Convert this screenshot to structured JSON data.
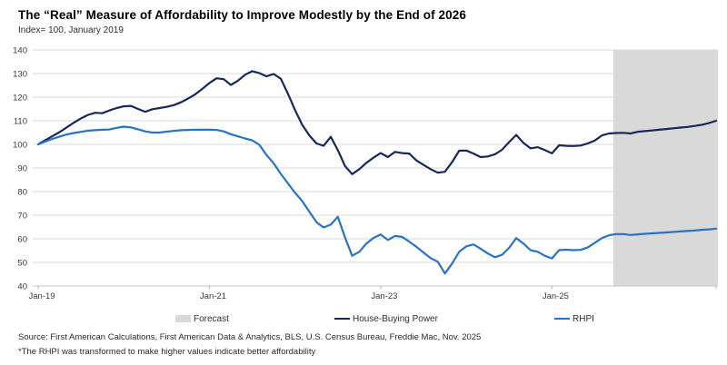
{
  "page": {
    "title": "The “Real” Measure of Affordability to Improve Modestly by the End of 2026",
    "subtitle": "Index= 100, January 2019",
    "source_line": "Source: First American Calculations, First American Data & Analytics, BLS, U.S. Census Bureau, Freddie Mac, Nov. 2025",
    "footnote": "*The RHPI was transformed to make higher values indicate better affordability"
  },
  "chart_data": {
    "type": "line",
    "title": "The “Real” Measure of Affordability to Improve Modestly by the End of 2026",
    "subtitle": "Index= 100, January 2019",
    "x_unit": "month",
    "x_range": [
      "Jan-2019",
      "Dec-2026"
    ],
    "x_tick_labels": [
      "Jan-19",
      "Jan-21",
      "Jan-23",
      "Jan-25"
    ],
    "x_tick_month_indices": [
      0,
      24,
      48,
      72
    ],
    "ylim": [
      40,
      140
    ],
    "y_tick_step": 10,
    "grid": true,
    "gridline_color": "#d9d9d9",
    "axis_line_color": "#c6c6c6",
    "tick_text_color": "#3a3a3a",
    "forecast_band": {
      "label": "Forecast",
      "start_month_index": 80.6,
      "end_month_index": 95,
      "color": "#d9d9d9"
    },
    "series": [
      {
        "name": "House-Buying Power",
        "color": "#16295c",
        "values": [
          100,
          101.8,
          103.5,
          105.2,
          107.2,
          109.2,
          111,
          112.5,
          113.4,
          113.2,
          114.4,
          115.4,
          116.1,
          116.3,
          115,
          113.8,
          114.9,
          115.4,
          115.9,
          116.6,
          117.8,
          119.4,
          121.2,
          123.5,
          126,
          128,
          127.6,
          125.2,
          127,
          129.5,
          131,
          130.2,
          128.8,
          129.8,
          127.8,
          121.5,
          114.5,
          108.3,
          103.8,
          100.4,
          99.4,
          103.2,
          97.5,
          90.8,
          87.4,
          89.5,
          92.2,
          94.4,
          96.3,
          94.6,
          96.8,
          96.3,
          96.1,
          93.2,
          91.3,
          89.5,
          88,
          88.4,
          92.5,
          97.3,
          97.4,
          96.1,
          94.6,
          94.9,
          95.8,
          97.7,
          101,
          104,
          100.6,
          98.3,
          98.8,
          97.6,
          96.2,
          99.6,
          99.4,
          99.3,
          99.5,
          100.4,
          101.6,
          103.8,
          104.6,
          104.8,
          104.9,
          104.6,
          105.3,
          105.6,
          105.9,
          106.2,
          106.5,
          106.8,
          107.1,
          107.4,
          107.8,
          108.3,
          109,
          110
        ]
      },
      {
        "name": "RHPI",
        "color": "#2a72c3",
        "values": [
          100,
          101.2,
          102.3,
          103.3,
          104.2,
          104.8,
          105.3,
          105.8,
          106,
          106.2,
          106.3,
          107,
          107.5,
          107.2,
          106.4,
          105.5,
          105,
          105,
          105.4,
          105.7,
          106,
          106.1,
          106.2,
          106.2,
          106.2,
          106.1,
          105.5,
          104.3,
          103.4,
          102.5,
          101.7,
          99.8,
          95.5,
          92,
          87.5,
          83.5,
          79.5,
          76,
          71.5,
          67,
          64.8,
          66,
          69.3,
          60.5,
          52.8,
          54.5,
          58,
          60.4,
          61.8,
          59.5,
          61.2,
          60.8,
          58.8,
          56.6,
          54.2,
          51.8,
          50.3,
          45.3,
          49.5,
          54.5,
          56.8,
          57.6,
          55.8,
          53.8,
          52.2,
          53.2,
          56.2,
          60.3,
          58,
          55.2,
          54.5,
          52.8,
          51.7,
          55.2,
          55.4,
          55.2,
          55.3,
          56.3,
          58.3,
          60.3,
          61.5,
          62,
          62,
          61.6,
          61.9,
          62.1,
          62.3,
          62.5,
          62.7,
          62.9,
          63.1,
          63.3,
          63.5,
          63.8,
          64,
          64.3
        ]
      }
    ],
    "legend_position": "bottom"
  }
}
